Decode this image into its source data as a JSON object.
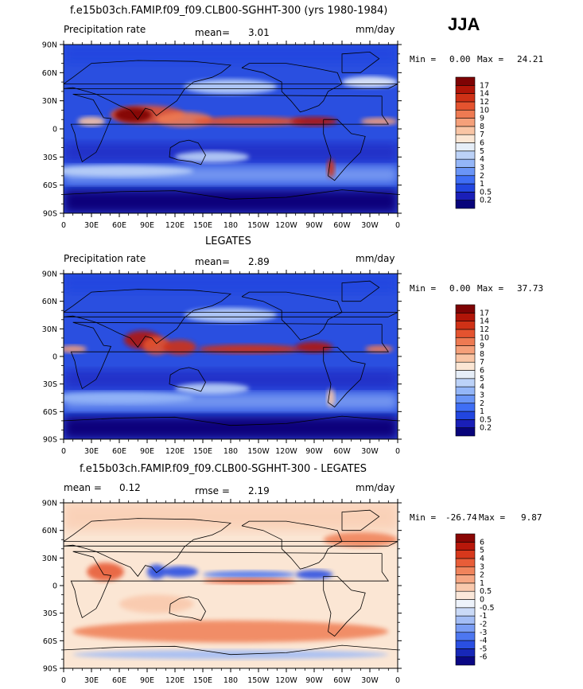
{
  "season_label": "JJA",
  "chart_data": [
    {
      "type": "heatmap",
      "title": "f.e15b03ch.FAMIP.f09_f09.CLB00-SGHHT-300 (yrs 1980-1984)",
      "left_label": "Precipitation rate",
      "mean_text": "mean=",
      "mean_value": "3.01",
      "units": "mm/day",
      "min_text": "Min =",
      "min_value": "0.00",
      "max_text": "Max =",
      "max_value": "24.21",
      "colorbar_levels": [
        "0.2",
        "0.5",
        "1",
        "2",
        "3",
        "4",
        "5",
        "6",
        "7",
        "8",
        "9",
        "10",
        "12",
        "14",
        "17"
      ],
      "colorbar_colors": [
        "#08047a",
        "#1a1fb8",
        "#2246e0",
        "#3f6ef5",
        "#6a95f7",
        "#94b6f8",
        "#bcd2f8",
        "#e6eef8",
        "#fbe6d4",
        "#f9c5a5",
        "#f5a07a",
        "#ee7a52",
        "#e4532f",
        "#cf3116",
        "#b11508",
        "#7e0304"
      ],
      "x_ticks": [
        "0",
        "30E",
        "60E",
        "90E",
        "120E",
        "150E",
        "180",
        "150W",
        "120W",
        "90W",
        "60W",
        "30W",
        "0"
      ],
      "y_ticks": [
        "90N",
        "60N",
        "30N",
        "0",
        "30S",
        "60S",
        "90S"
      ]
    },
    {
      "type": "heatmap",
      "title": "LEGATES",
      "left_label": "Precipitation rate",
      "mean_text": "mean=",
      "mean_value": "2.89",
      "units": "mm/day",
      "min_text": "Min =",
      "min_value": "0.00",
      "max_text": "Max =",
      "max_value": "37.73",
      "colorbar_levels": [
        "0.2",
        "0.5",
        "1",
        "2",
        "3",
        "4",
        "5",
        "6",
        "7",
        "8",
        "9",
        "10",
        "12",
        "14",
        "17"
      ],
      "colorbar_colors": [
        "#08047a",
        "#1a1fb8",
        "#2246e0",
        "#3f6ef5",
        "#6a95f7",
        "#94b6f8",
        "#bcd2f8",
        "#e6eef8",
        "#fbe6d4",
        "#f9c5a5",
        "#f5a07a",
        "#ee7a52",
        "#e4532f",
        "#cf3116",
        "#b11508",
        "#7e0304"
      ],
      "x_ticks": [
        "0",
        "30E",
        "60E",
        "90E",
        "120E",
        "150E",
        "180",
        "150W",
        "120W",
        "90W",
        "60W",
        "30W",
        "0"
      ],
      "y_ticks": [
        "90N",
        "60N",
        "30N",
        "0",
        "30S",
        "60S",
        "90S"
      ]
    },
    {
      "type": "heatmap",
      "title": "f.e15b03ch.FAMIP.f09_f09.CLB00-SGHHT-300 - LEGATES",
      "left_label": "mean =",
      "left_value": "0.12",
      "mean_text": "rmse =",
      "mean_value": "2.19",
      "units": "mm/day",
      "min_text": "Min =",
      "min_value": "-26.74",
      "max_text": "Max =",
      "max_value": "9.87",
      "colorbar_levels": [
        "-6",
        "-5",
        "-4",
        "-3",
        "-2",
        "-1",
        "-0.5",
        "0",
        "0.5",
        "1",
        "2",
        "3",
        "4",
        "5",
        "6"
      ],
      "colorbar_colors": [
        "#0a0784",
        "#1727b8",
        "#2a4fe2",
        "#4d77f0",
        "#7a9df4",
        "#a3bdf5",
        "#cadaf7",
        "#eef3fb",
        "#fbe8da",
        "#f9c9ad",
        "#f6a784",
        "#f0845c",
        "#e85d38",
        "#d7381c",
        "#b8170a",
        "#8a0604"
      ],
      "x_ticks": [
        "0",
        "30E",
        "60E",
        "90E",
        "120E",
        "150E",
        "180",
        "150W",
        "120W",
        "90W",
        "60W",
        "30W",
        "0"
      ],
      "y_ticks": [
        "90N",
        "60N",
        "30N",
        "0",
        "30S",
        "60S",
        "90S"
      ]
    }
  ]
}
